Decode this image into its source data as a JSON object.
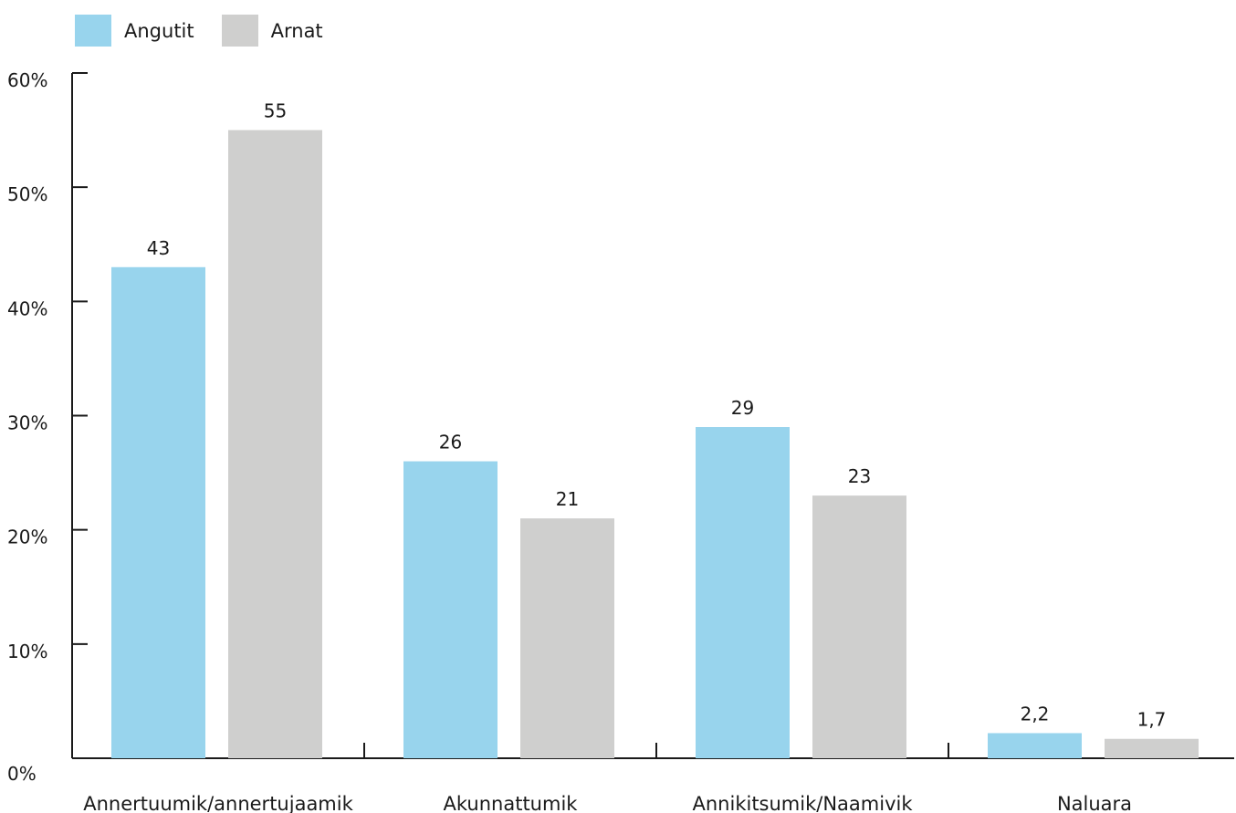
{
  "chart_data": {
    "type": "bar",
    "categories": [
      "Annertuumik/annertujaamik",
      "Akunnattumik",
      "Annikitsumik/Naamivik",
      "Naluara"
    ],
    "series": [
      {
        "name": "Angutit",
        "color": "#98d4ed",
        "values": [
          43,
          26,
          29,
          2.2
        ],
        "labels": [
          "43",
          "26",
          "29",
          "2,2"
        ]
      },
      {
        "name": "Arnat",
        "color": "#cfcfce",
        "values": [
          55,
          21,
          23,
          1.7
        ],
        "labels": [
          "55",
          "21",
          "23",
          "1,7"
        ]
      }
    ],
    "ylim": [
      0,
      60
    ],
    "yticks": [
      "0%",
      "10%",
      "20%",
      "30%",
      "40%",
      "50%",
      "60%"
    ],
    "grid": false,
    "legend_position": "top-left",
    "xlabel": "",
    "ylabel": ""
  }
}
